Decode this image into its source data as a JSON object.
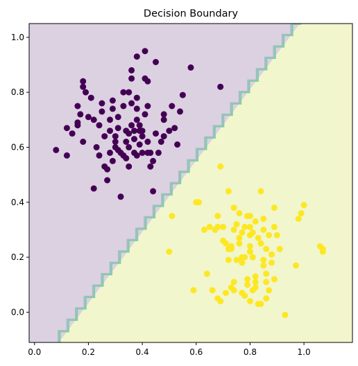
{
  "chart_data": {
    "type": "scatter",
    "title": "Decision Boundary",
    "xlabel": "",
    "ylabel": "",
    "xlim": [
      -0.02,
      1.18
    ],
    "ylim": [
      -0.11,
      1.05
    ],
    "xticks": [
      0.0,
      0.2,
      0.4,
      0.6,
      0.8,
      1.0
    ],
    "xtick_labels": [
      "0.0",
      "0.2",
      "0.4",
      "0.6",
      "0.8",
      "1.0"
    ],
    "yticks": [
      0.0,
      0.2,
      0.4,
      0.6,
      0.8,
      1.0
    ],
    "ytick_labels": [
      "0.0",
      "0.2",
      "0.4",
      "0.6",
      "0.8",
      "1.0"
    ],
    "grid": false,
    "legend": "none",
    "boundary": {
      "line": [
        [
          0.09,
          -0.11
        ],
        [
          0.985,
          1.05
        ]
      ],
      "region_colors": {
        "class_0": "#dcd1e1",
        "class_1": "#f2f6cc"
      },
      "edge_colors": [
        "#9fbfc3",
        "#7ecfa0"
      ]
    },
    "series": [
      {
        "class": 0,
        "color": "#440154",
        "points": [
          [
            0.08,
            0.59
          ],
          [
            0.12,
            0.67
          ],
          [
            0.12,
            0.57
          ],
          [
            0.14,
            0.65
          ],
          [
            0.16,
            0.68
          ],
          [
            0.16,
            0.69
          ],
          [
            0.16,
            0.75
          ],
          [
            0.17,
            0.72
          ],
          [
            0.18,
            0.62
          ],
          [
            0.18,
            0.84
          ],
          [
            0.18,
            0.82
          ],
          [
            0.19,
            0.8
          ],
          [
            0.2,
            0.71
          ],
          [
            0.21,
            0.78
          ],
          [
            0.22,
            0.45
          ],
          [
            0.22,
            0.7
          ],
          [
            0.23,
            0.6
          ],
          [
            0.24,
            0.57
          ],
          [
            0.24,
            0.68
          ],
          [
            0.25,
            0.76
          ],
          [
            0.25,
            0.73
          ],
          [
            0.26,
            0.64
          ],
          [
            0.26,
            0.53
          ],
          [
            0.27,
            0.52
          ],
          [
            0.27,
            0.48
          ],
          [
            0.28,
            0.58
          ],
          [
            0.28,
            0.66
          ],
          [
            0.28,
            0.7
          ],
          [
            0.29,
            0.74
          ],
          [
            0.29,
            0.77
          ],
          [
            0.29,
            0.55
          ],
          [
            0.3,
            0.62
          ],
          [
            0.3,
            0.64
          ],
          [
            0.3,
            0.6
          ],
          [
            0.31,
            0.59
          ],
          [
            0.31,
            0.71
          ],
          [
            0.31,
            0.67
          ],
          [
            0.32,
            0.42
          ],
          [
            0.32,
            0.58
          ],
          [
            0.33,
            0.75
          ],
          [
            0.33,
            0.8
          ],
          [
            0.33,
            0.57
          ],
          [
            0.34,
            0.62
          ],
          [
            0.34,
            0.66
          ],
          [
            0.34,
            0.56
          ],
          [
            0.35,
            0.8
          ],
          [
            0.35,
            0.6
          ],
          [
            0.35,
            0.53
          ],
          [
            0.35,
            0.65
          ],
          [
            0.36,
            0.85
          ],
          [
            0.36,
            0.88
          ],
          [
            0.36,
            0.68
          ],
          [
            0.36,
            0.76
          ],
          [
            0.37,
            0.66
          ],
          [
            0.37,
            0.63
          ],
          [
            0.37,
            0.58
          ],
          [
            0.38,
            0.78
          ],
          [
            0.38,
            0.74
          ],
          [
            0.38,
            0.7
          ],
          [
            0.38,
            0.57
          ],
          [
            0.38,
            0.93
          ],
          [
            0.39,
            0.66
          ],
          [
            0.39,
            0.61
          ],
          [
            0.39,
            0.68
          ],
          [
            0.4,
            0.64
          ],
          [
            0.4,
            0.58
          ],
          [
            0.4,
            0.66
          ],
          [
            0.41,
            0.72
          ],
          [
            0.41,
            0.95
          ],
          [
            0.41,
            0.85
          ],
          [
            0.42,
            0.75
          ],
          [
            0.42,
            0.84
          ],
          [
            0.42,
            0.62
          ],
          [
            0.42,
            0.58
          ],
          [
            0.43,
            0.58
          ],
          [
            0.43,
            0.53
          ],
          [
            0.44,
            0.44
          ],
          [
            0.44,
            0.55
          ],
          [
            0.45,
            0.91
          ],
          [
            0.45,
            0.65
          ],
          [
            0.46,
            0.58
          ],
          [
            0.47,
            0.62
          ],
          [
            0.48,
            0.64
          ],
          [
            0.48,
            0.72
          ],
          [
            0.48,
            0.7
          ],
          [
            0.5,
            0.66
          ],
          [
            0.51,
            0.75
          ],
          [
            0.52,
            0.67
          ],
          [
            0.53,
            0.61
          ],
          [
            0.54,
            0.73
          ],
          [
            0.55,
            0.79
          ],
          [
            0.58,
            0.89
          ],
          [
            0.69,
            0.82
          ]
        ]
      },
      {
        "class": 1,
        "color": "#fde725",
        "points": [
          [
            0.5,
            0.22
          ],
          [
            0.51,
            0.35
          ],
          [
            0.59,
            0.08
          ],
          [
            0.6,
            0.4
          ],
          [
            0.61,
            0.4
          ],
          [
            0.63,
            0.3
          ],
          [
            0.64,
            0.14
          ],
          [
            0.65,
            0.31
          ],
          [
            0.66,
            0.08
          ],
          [
            0.67,
            0.3
          ],
          [
            0.68,
            0.35
          ],
          [
            0.68,
            0.31
          ],
          [
            0.68,
            0.05
          ],
          [
            0.69,
            0.53
          ],
          [
            0.69,
            0.04
          ],
          [
            0.7,
            0.31
          ],
          [
            0.7,
            0.26
          ],
          [
            0.71,
            0.07
          ],
          [
            0.71,
            0.25
          ],
          [
            0.72,
            0.44
          ],
          [
            0.72,
            0.23
          ],
          [
            0.72,
            0.19
          ],
          [
            0.73,
            0.23
          ],
          [
            0.73,
            0.24
          ],
          [
            0.73,
            0.09
          ],
          [
            0.74,
            0.11
          ],
          [
            0.74,
            0.08
          ],
          [
            0.74,
            0.38
          ],
          [
            0.74,
            0.3
          ],
          [
            0.75,
            0.32
          ],
          [
            0.75,
            0.19
          ],
          [
            0.76,
            0.25
          ],
          [
            0.76,
            0.27
          ],
          [
            0.76,
            0.36
          ],
          [
            0.77,
            0.2
          ],
          [
            0.77,
            0.18
          ],
          [
            0.77,
            0.29
          ],
          [
            0.77,
            0.07
          ],
          [
            0.78,
            0.31
          ],
          [
            0.78,
            0.2
          ],
          [
            0.78,
            0.06
          ],
          [
            0.79,
            0.1
          ],
          [
            0.79,
            0.35
          ],
          [
            0.79,
            0.12
          ],
          [
            0.8,
            0.24
          ],
          [
            0.8,
            0.22
          ],
          [
            0.8,
            0.31
          ],
          [
            0.8,
            0.35
          ],
          [
            0.8,
            0.28
          ],
          [
            0.8,
            0.04
          ],
          [
            0.81,
            0.2
          ],
          [
            0.81,
            0.08
          ],
          [
            0.81,
            0.29
          ],
          [
            0.82,
            0.11
          ],
          [
            0.82,
            0.13
          ],
          [
            0.82,
            0.09
          ],
          [
            0.82,
            0.33
          ],
          [
            0.83,
            0.27
          ],
          [
            0.83,
            0.03
          ],
          [
            0.84,
            0.44
          ],
          [
            0.84,
            0.25
          ],
          [
            0.84,
            0.03
          ],
          [
            0.85,
            0.17
          ],
          [
            0.85,
            0.19
          ],
          [
            0.85,
            0.34
          ],
          [
            0.85,
            0.3
          ],
          [
            0.86,
            0.14
          ],
          [
            0.86,
            0.23
          ],
          [
            0.86,
            0.11
          ],
          [
            0.86,
            0.05
          ],
          [
            0.87,
            0.28
          ],
          [
            0.87,
            0.08
          ],
          [
            0.88,
            0.18
          ],
          [
            0.88,
            0.21
          ],
          [
            0.89,
            0.31
          ],
          [
            0.89,
            0.38
          ],
          [
            0.89,
            0.12
          ],
          [
            0.9,
            0.28
          ],
          [
            0.91,
            0.23
          ],
          [
            0.93,
            -0.01
          ],
          [
            0.97,
            0.17
          ],
          [
            0.98,
            0.34
          ],
          [
            0.99,
            0.36
          ],
          [
            1.0,
            0.39
          ],
          [
            1.06,
            0.24
          ],
          [
            1.07,
            0.22
          ],
          [
            1.07,
            0.23
          ]
        ]
      }
    ]
  }
}
